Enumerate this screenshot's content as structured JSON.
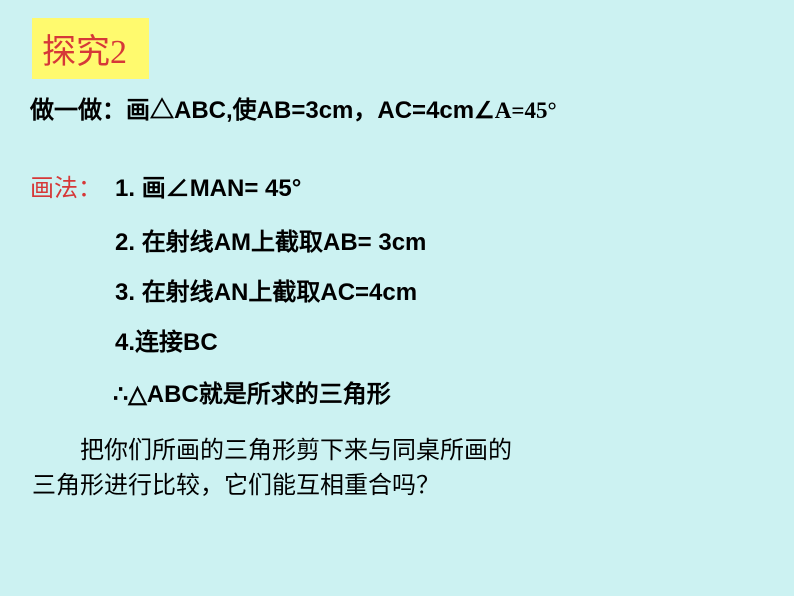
{
  "colors": {
    "background": "#ccf2f2",
    "highlight_bg": "#fffa6e",
    "red_text": "#d63838",
    "black_text": "#000000"
  },
  "heading": "探究2",
  "problem": {
    "prefix": "做一做：画△",
    "abc": "ABC,",
    "cond1_cn": "使",
    "cond1": "AB=3cm",
    "comma": "，",
    "cond2": "AC=4cm",
    "angle": "∠A=45°"
  },
  "method_label": "画法：",
  "steps": {
    "s1_num": "1. ",
    "s1_cn": "画∠",
    "s1_rest": "MAN= 45°",
    "s2_num": "2.  ",
    "s2_cn1": "在射线",
    "s2_mid": "AM",
    "s2_cn2": "上截取",
    "s2_rest": "AB= 3cm",
    "s3_num": "3.  ",
    "s3_cn1": "在射线",
    "s3_mid": "AN",
    "s3_cn2": "上截取",
    "s3_rest": "AC=4cm",
    "s4_num": "4.",
    "s4_cn": "连接",
    "s4_rest": "BC"
  },
  "conclusion": {
    "therefore": "∴",
    "tri": "△ABC",
    "text": "就是所求的三角形"
  },
  "note_line1": "把你们所画的三角形剪下来与同桌所画的",
  "note_line2": "三角形进行比较，它们能互相重合吗？",
  "fonts": {
    "heading_size": 34,
    "body_size": 24
  }
}
